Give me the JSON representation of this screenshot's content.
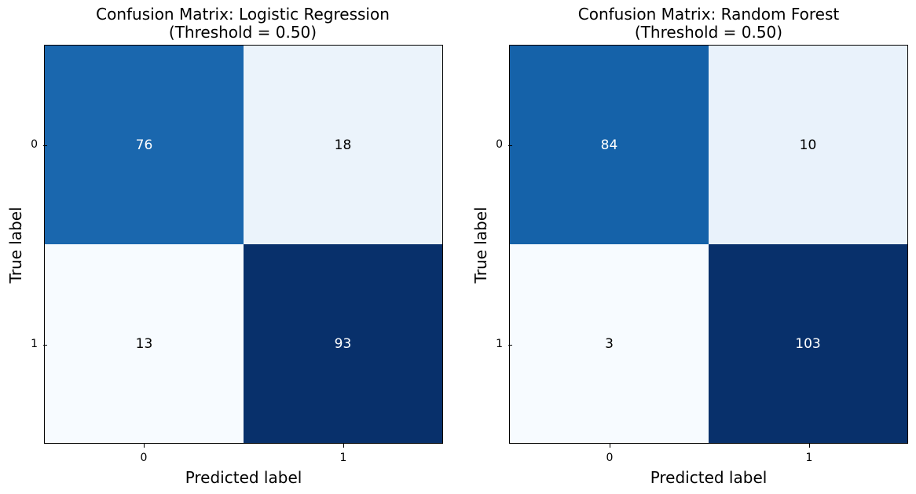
{
  "chart_data": [
    {
      "type": "heatmap",
      "title_line1": "Confusion Matrix: Logistic Regression",
      "title_line2": "(Threshold = 0.50)",
      "xlabel": "Predicted label",
      "ylabel": "True label",
      "x_ticks": [
        "0",
        "1"
      ],
      "y_ticks": [
        "0",
        "1"
      ],
      "matrix": [
        [
          76,
          18
        ],
        [
          13,
          93
        ]
      ],
      "colormap": "Blues"
    },
    {
      "type": "heatmap",
      "title_line1": "Confusion Matrix: Random Forest",
      "title_line2": "(Threshold = 0.50)",
      "xlabel": "Predicted label",
      "ylabel": "True label",
      "x_ticks": [
        "0",
        "1"
      ],
      "y_ticks": [
        "0",
        "1"
      ],
      "matrix": [
        [
          84,
          10
        ],
        [
          3,
          103
        ]
      ],
      "colormap": "Blues"
    }
  ]
}
